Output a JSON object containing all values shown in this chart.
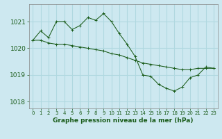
{
  "title": "Graphe pression niveau de la mer (hPa)",
  "bg_color": "#cde8f0",
  "grid_color": "#b0d8e0",
  "line_color": "#1a5c1a",
  "xlim": [
    -0.5,
    23.5
  ],
  "ylim": [
    1017.75,
    1021.65
  ],
  "yticks": [
    1018,
    1019,
    1020,
    1021
  ],
  "xticks": [
    0,
    1,
    2,
    3,
    4,
    5,
    6,
    7,
    8,
    9,
    10,
    11,
    12,
    13,
    14,
    15,
    16,
    17,
    18,
    19,
    20,
    21,
    22,
    23
  ],
  "series_jagged": {
    "x": [
      0,
      1,
      2,
      3,
      4,
      5,
      6,
      7,
      8,
      9,
      10,
      11,
      12,
      13,
      14,
      15,
      16,
      17,
      18,
      19,
      20,
      21,
      22,
      23
    ],
    "y": [
      1020.3,
      1020.65,
      1020.4,
      1021.0,
      1021.0,
      1020.7,
      1020.85,
      1021.15,
      1021.05,
      1021.3,
      1021.0,
      1020.55,
      1020.15,
      1019.7,
      1019.0,
      1018.95,
      1018.65,
      1018.5,
      1018.4,
      1018.55,
      1018.9,
      1019.0,
      1019.3,
      1019.25
    ]
  },
  "series_diagonal": {
    "x": [
      0,
      1,
      2,
      3,
      4,
      5,
      6,
      7,
      8,
      9,
      10,
      11,
      12,
      13,
      14,
      15,
      16,
      17,
      18,
      19,
      20,
      21,
      22,
      23
    ],
    "y": [
      1020.3,
      1020.3,
      1020.2,
      1020.15,
      1020.15,
      1020.1,
      1020.05,
      1020.0,
      1019.95,
      1019.9,
      1019.8,
      1019.75,
      1019.65,
      1019.55,
      1019.45,
      1019.4,
      1019.35,
      1019.3,
      1019.25,
      1019.2,
      1019.2,
      1019.25,
      1019.25,
      1019.25
    ]
  }
}
